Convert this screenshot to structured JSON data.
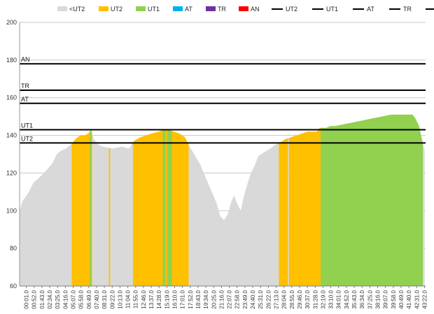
{
  "chart_data": {
    "type": "area",
    "title": "",
    "xlabel": "",
    "ylabel": "",
    "ylim": [
      60,
      200
    ],
    "yticks": [
      60,
      80,
      100,
      120,
      140,
      160,
      180,
      200
    ],
    "grid": "horizontal",
    "legend_position": "top",
    "x_ticks": [
      "00:01.0",
      "00:52.0",
      "01:43.0",
      "02:34.0",
      "03:25.0",
      "04:16.0",
      "05:07.0",
      "05:58.0",
      "06:49.0",
      "07:40.0",
      "08:31.0",
      "09:22.0",
      "10:13.0",
      "11:04.0",
      "11:55.0",
      "12:46.0",
      "13:37.0",
      "14:28.0",
      "15:19.0",
      "16:10.0",
      "17:01.0",
      "17:52.0",
      "18:43.0",
      "19:34.0",
      "20:25.0",
      "21:16.0",
      "22:07.0",
      "22:58.0",
      "23:49.0",
      "24:40.0",
      "25:31.0",
      "26:22.0",
      "27:13.0",
      "28:04.0",
      "28:55.0",
      "29:46.0",
      "30:37.0",
      "31:28.0",
      "32:19.0",
      "33:10.0",
      "34:01.0",
      "34:52.0",
      "35:43.0",
      "36:34.0",
      "37:25.0",
      "38:16.0",
      "39:07.0",
      "39:58.0",
      "40:49.0",
      "41:40.0",
      "42:31.0",
      "43:22.0"
    ],
    "zone_legend": [
      {
        "name": "<UT2",
        "color": "#d9d9d9"
      },
      {
        "name": "UT2",
        "color": "#ffc000"
      },
      {
        "name": "UT1",
        "color": "#92d050"
      },
      {
        "name": "AT",
        "color": "#00b0f0"
      },
      {
        "name": "TR",
        "color": "#7030a0"
      },
      {
        "name": "AN",
        "color": "#ff0000"
      }
    ],
    "threshold_legend": [
      "UT2",
      "UT1",
      "AT",
      "TR",
      "AN"
    ],
    "thresholds": [
      {
        "name": "UT2",
        "value": 136
      },
      {
        "name": "UT1",
        "value": 143
      },
      {
        "name": "AT",
        "value": 157
      },
      {
        "name": "TR",
        "value": 164
      },
      {
        "name": "AN",
        "value": 178
      }
    ],
    "heart_rate_profile": [
      [
        0,
        100
      ],
      [
        0.3,
        105
      ],
      [
        1,
        110
      ],
      [
        1.5,
        115
      ],
      [
        2,
        117
      ],
      [
        2.8,
        121
      ],
      [
        3.5,
        125
      ],
      [
        4,
        130
      ],
      [
        4.5,
        132
      ],
      [
        5,
        133
      ],
      [
        5.5,
        135
      ],
      [
        6,
        138
      ],
      [
        6.5,
        140
      ],
      [
        7,
        140
      ],
      [
        7.4,
        141
      ],
      [
        7.7,
        143
      ],
      [
        8,
        138
      ],
      [
        8.5,
        135
      ],
      [
        9,
        134
      ],
      [
        10,
        133
      ],
      [
        11,
        134
      ],
      [
        11.8,
        133
      ],
      [
        12.3,
        137
      ],
      [
        13,
        139
      ],
      [
        13.6,
        140
      ],
      [
        14.2,
        141
      ],
      [
        15,
        142
      ],
      [
        15.5,
        143
      ],
      [
        16,
        143
      ],
      [
        16.6,
        142
      ],
      [
        17.2,
        141
      ],
      [
        17.8,
        139
      ],
      [
        18.3,
        134
      ],
      [
        18.8,
        130
      ],
      [
        19.4,
        125
      ],
      [
        20,
        118
      ],
      [
        20.6,
        111
      ],
      [
        21.2,
        104
      ],
      [
        21.6,
        97
      ],
      [
        22,
        95
      ],
      [
        22.4,
        98
      ],
      [
        22.8,
        105
      ],
      [
        23.1,
        108
      ],
      [
        23.4,
        104
      ],
      [
        23.8,
        100
      ],
      [
        24.1,
        107
      ],
      [
        24.5,
        114
      ],
      [
        24.9,
        120
      ],
      [
        25.3,
        124
      ],
      [
        25.7,
        129
      ],
      [
        26.3,
        131
      ],
      [
        27,
        133
      ],
      [
        27.5,
        135
      ],
      [
        28,
        136
      ],
      [
        28.6,
        138
      ],
      [
        29.2,
        139
      ],
      [
        29.8,
        140
      ],
      [
        30.4,
        141
      ],
      [
        31,
        142
      ],
      [
        31.6,
        142
      ],
      [
        32,
        142
      ],
      [
        32.3,
        144
      ],
      [
        33,
        144
      ],
      [
        33.5,
        145
      ],
      [
        34,
        145
      ],
      [
        35,
        146
      ],
      [
        36,
        147
      ],
      [
        37,
        148
      ],
      [
        38,
        149
      ],
      [
        39,
        150
      ],
      [
        40,
        151
      ],
      [
        41,
        151
      ],
      [
        41.8,
        151
      ],
      [
        42.3,
        151
      ],
      [
        42.6,
        149
      ],
      [
        43,
        145
      ],
      [
        43.3,
        138
      ],
      [
        43.6,
        132
      ]
    ],
    "zone_segments": [
      {
        "zone": "<UT2",
        "from": 0,
        "to": 5.6
      },
      {
        "zone": "UT2",
        "from": 5.6,
        "to": 7.8
      },
      {
        "zone": "UT1",
        "from": 7.55,
        "to": 7.75
      },
      {
        "zone": "<UT2",
        "from": 7.8,
        "to": 9.6
      },
      {
        "zone": "UT2",
        "from": 9.6,
        "to": 9.75
      },
      {
        "zone": "<UT2",
        "from": 9.75,
        "to": 12.2
      },
      {
        "zone": "UT2",
        "from": 12.2,
        "to": 18.2
      },
      {
        "zone": "UT1",
        "from": 15.4,
        "to": 15.7
      },
      {
        "zone": "UT1",
        "from": 15.9,
        "to": 16.4
      },
      {
        "zone": "<UT2",
        "from": 18.2,
        "to": 27.9
      },
      {
        "zone": "UT2",
        "from": 27.9,
        "to": 28.9
      },
      {
        "zone": "<UT2",
        "from": 28.9,
        "to": 29.0
      },
      {
        "zone": "UT2",
        "from": 29.0,
        "to": 32.4
      },
      {
        "zone": "UT1",
        "from": 32.4,
        "to": 43.4
      },
      {
        "zone": "<UT2",
        "from": 43.4,
        "to": 43.7
      }
    ],
    "x_range_minutes": [
      0,
      43.7
    ]
  }
}
